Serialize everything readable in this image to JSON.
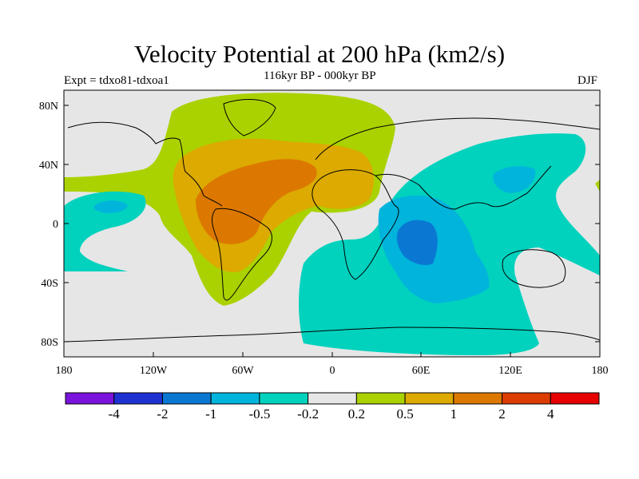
{
  "title": "Velocity Potential at 200 hPa (km2/s)",
  "subtitle": "116kyr BP - 000kyr BP",
  "experiment": "Expt = tdxo81-tdxoa1",
  "season": "DJF",
  "lat_labels": [
    "80N",
    "40N",
    "0",
    "40S",
    "80S"
  ],
  "lon_labels": [
    "180",
    "120W",
    "60W",
    "0",
    "60E",
    "120E",
    "180"
  ],
  "colorbar": {
    "labels": [
      "-4",
      "-2",
      "-1",
      "-0.5",
      "-0.2",
      "0.2",
      "0.5",
      "1",
      "2",
      "4"
    ],
    "colors": [
      "#7a14dc",
      "#1e32d2",
      "#0a78d2",
      "#00b4dc",
      "#00d2be",
      "#e6e6e6",
      "#aad200",
      "#dcaa00",
      "#dc7800",
      "#dc3c00",
      "#e60000"
    ]
  },
  "contour_colors": {
    "neutral": "#e6e6e6",
    "pos_weak": "#aad200",
    "pos_mid": "#dcaa00",
    "pos_strong": "#dc7800",
    "neg_weak": "#00d2be",
    "neg_mid": "#00b4dc",
    "neg_strong": "#0a78d2"
  }
}
